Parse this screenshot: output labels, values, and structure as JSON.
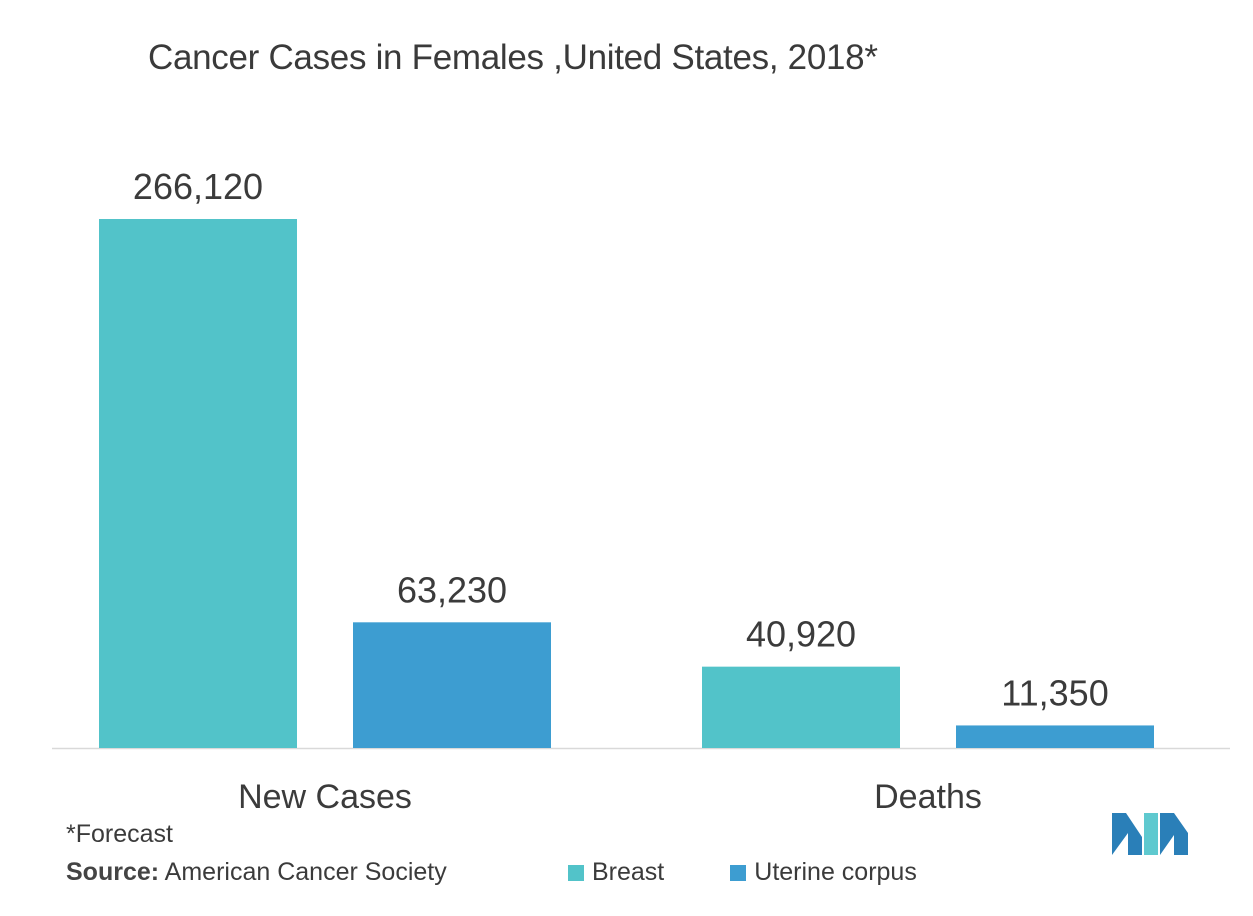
{
  "title": "Cancer Cases in Females ,United States, 2018*",
  "footnote": "*Forecast",
  "source": {
    "label": "Source:",
    "text": "American Cancer Society"
  },
  "colors": {
    "breast": "#52c3c9",
    "uterine": "#3d9dd1",
    "axis": "#d9d9d9",
    "text": "#3b3b3b",
    "logo_dark": "#2a7fb8",
    "logo_light": "#5fc9cf"
  },
  "logo_icon": "mordor-intelligence-logo-icon",
  "chart_data": {
    "type": "bar",
    "title": "Cancer Cases in Females ,United States, 2018*",
    "categories": [
      "New Cases",
      "Deaths"
    ],
    "series": [
      {
        "name": "Breast",
        "values": [
          266120,
          40920
        ],
        "labels": [
          "266,120",
          "40,920"
        ]
      },
      {
        "name": "Uterine corpus",
        "values": [
          63230,
          11350
        ],
        "labels": [
          "63,230",
          "11,350"
        ]
      }
    ],
    "ylim": [
      0,
      266120
    ],
    "grid": false,
    "legend": "bottom"
  }
}
